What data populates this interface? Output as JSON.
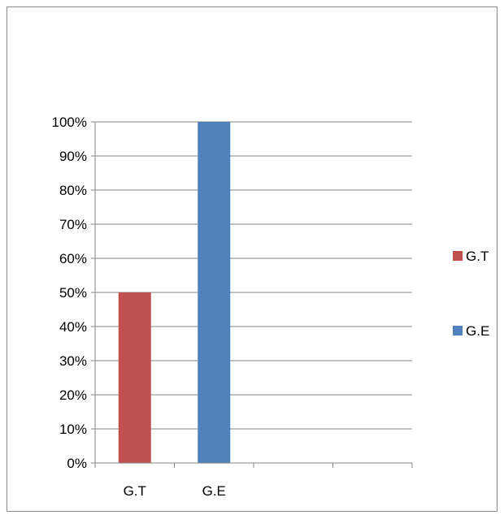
{
  "chart_data": {
    "type": "bar",
    "categories": [
      "G.T",
      "G.E",
      "",
      ""
    ],
    "series": [
      {
        "name": "G.T",
        "color": "#c0504d",
        "values": [
          50,
          null,
          null,
          null
        ]
      },
      {
        "name": "G.E",
        "color": "#4f81bd",
        "values": [
          null,
          100,
          null,
          null
        ]
      }
    ],
    "y_ticks": [
      "0%",
      "10%",
      "20%",
      "30%",
      "40%",
      "50%",
      "60%",
      "70%",
      "80%",
      "90%",
      "100%"
    ],
    "ylim": [
      0,
      100
    ],
    "grid": true,
    "legend_position": "right"
  }
}
